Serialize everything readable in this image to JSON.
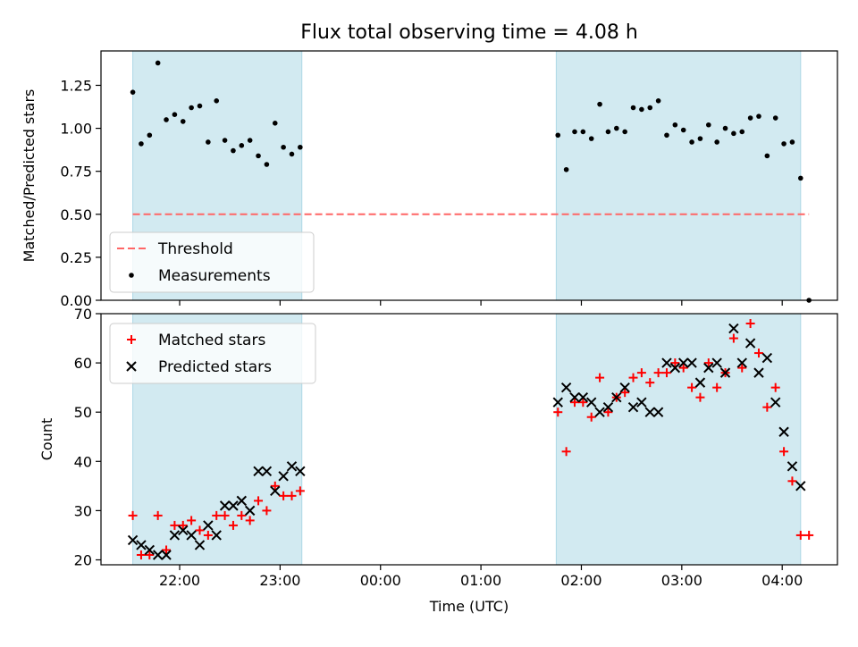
{
  "title": "Flux total observing time = 4.08 h",
  "colors": {
    "shade": "#add8e6",
    "threshold": "#ff6666",
    "measurement": "#000000",
    "matched": "#ff0000",
    "predicted": "#000000"
  },
  "chart_data": [
    {
      "type": "scatter",
      "name": "ratio-panel",
      "ylabel": "Matched/Predicted stars",
      "xlabel": "",
      "ylim": [
        0,
        1.45
      ],
      "yticks": [
        "0.00",
        "0.25",
        "0.50",
        "0.75",
        "1.00",
        "1.25"
      ],
      "ytick_values": [
        0,
        0.25,
        0.5,
        0.75,
        1.0,
        1.25
      ],
      "x_tick_labels_visible": false,
      "shaded_intervals": [
        [
          "21:32",
          "23:13"
        ],
        [
          "01:45",
          "04:11"
        ]
      ],
      "threshold": {
        "label": "Threshold",
        "value": 0.5,
        "x_range": [
          "21:32",
          "04:16"
        ],
        "style": "dashed"
      },
      "legend": {
        "placement": "lower-left",
        "entries": [
          "Threshold",
          "Measurements"
        ]
      },
      "series": [
        {
          "name": "Measurements",
          "marker": "dot",
          "points": [
            [
              "21:32",
              1.21
            ],
            [
              "21:37",
              0.91
            ],
            [
              "21:42",
              0.96
            ],
            [
              "21:47",
              1.38
            ],
            [
              "21:52",
              1.05
            ],
            [
              "21:57",
              1.08
            ],
            [
              "22:02",
              1.04
            ],
            [
              "22:07",
              1.12
            ],
            [
              "22:12",
              1.13
            ],
            [
              "22:17",
              0.92
            ],
            [
              "22:22",
              1.16
            ],
            [
              "22:27",
              0.93
            ],
            [
              "22:32",
              0.87
            ],
            [
              "22:37",
              0.9
            ],
            [
              "22:42",
              0.93
            ],
            [
              "22:47",
              0.84
            ],
            [
              "22:52",
              0.79
            ],
            [
              "22:57",
              1.03
            ],
            [
              "23:02",
              0.89
            ],
            [
              "23:07",
              0.85
            ],
            [
              "23:12",
              0.89
            ],
            [
              "01:46",
              0.96
            ],
            [
              "01:51",
              0.76
            ],
            [
              "01:56",
              0.98
            ],
            [
              "02:01",
              0.98
            ],
            [
              "02:06",
              0.94
            ],
            [
              "02:11",
              1.14
            ],
            [
              "02:16",
              0.98
            ],
            [
              "02:21",
              1.0
            ],
            [
              "02:26",
              0.98
            ],
            [
              "02:31",
              1.12
            ],
            [
              "02:36",
              1.11
            ],
            [
              "02:41",
              1.12
            ],
            [
              "02:46",
              1.16
            ],
            [
              "02:51",
              0.96
            ],
            [
              "02:56",
              1.02
            ],
            [
              "03:01",
              0.99
            ],
            [
              "03:06",
              0.92
            ],
            [
              "03:11",
              0.94
            ],
            [
              "03:16",
              1.02
            ],
            [
              "03:21",
              0.92
            ],
            [
              "03:26",
              1.0
            ],
            [
              "03:31",
              0.97
            ],
            [
              "03:36",
              0.98
            ],
            [
              "03:41",
              1.06
            ],
            [
              "03:46",
              1.07
            ],
            [
              "03:51",
              0.84
            ],
            [
              "03:56",
              1.06
            ],
            [
              "04:01",
              0.91
            ],
            [
              "04:06",
              0.92
            ],
            [
              "04:11",
              0.71
            ],
            [
              "04:16",
              0.0
            ]
          ]
        }
      ]
    },
    {
      "type": "scatter",
      "name": "count-panel",
      "ylabel": "Count",
      "xlabel": "Time (UTC)",
      "ylim": [
        19,
        70
      ],
      "yticks": [
        "20",
        "30",
        "40",
        "50",
        "60",
        "70"
      ],
      "ytick_values": [
        20,
        30,
        40,
        50,
        60,
        70
      ],
      "xticks": [
        "22:00",
        "23:00",
        "00:00",
        "01:00",
        "02:00",
        "03:00",
        "04:00"
      ],
      "shaded_intervals": [
        [
          "21:32",
          "23:13"
        ],
        [
          "01:45",
          "04:11"
        ]
      ],
      "legend": {
        "placement": "upper-left",
        "entries": [
          "Matched stars",
          "Predicted stars"
        ]
      },
      "series": [
        {
          "name": "Matched stars",
          "marker": "plus",
          "points": [
            [
              "21:32",
              29
            ],
            [
              "21:37",
              21
            ],
            [
              "21:42",
              21
            ],
            [
              "21:47",
              29
            ],
            [
              "21:52",
              22
            ],
            [
              "21:57",
              27
            ],
            [
              "22:02",
              27
            ],
            [
              "22:07",
              28
            ],
            [
              "22:12",
              26
            ],
            [
              "22:17",
              25
            ],
            [
              "22:22",
              29
            ],
            [
              "22:27",
              29
            ],
            [
              "22:32",
              27
            ],
            [
              "22:37",
              29
            ],
            [
              "22:42",
              28
            ],
            [
              "22:47",
              32
            ],
            [
              "22:52",
              30
            ],
            [
              "22:57",
              35
            ],
            [
              "23:02",
              33
            ],
            [
              "23:07",
              33
            ],
            [
              "23:12",
              34
            ],
            [
              "01:46",
              50
            ],
            [
              "01:51",
              42
            ],
            [
              "01:56",
              52
            ],
            [
              "02:01",
              52
            ],
            [
              "02:06",
              49
            ],
            [
              "02:11",
              57
            ],
            [
              "02:16",
              50
            ],
            [
              "02:21",
              53
            ],
            [
              "02:26",
              54
            ],
            [
              "02:31",
              57
            ],
            [
              "02:36",
              58
            ],
            [
              "02:41",
              56
            ],
            [
              "02:46",
              58
            ],
            [
              "02:51",
              58
            ],
            [
              "02:56",
              60
            ],
            [
              "03:01",
              59
            ],
            [
              "03:06",
              55
            ],
            [
              "03:11",
              53
            ],
            [
              "03:16",
              60
            ],
            [
              "03:21",
              55
            ],
            [
              "03:26",
              58
            ],
            [
              "03:31",
              65
            ],
            [
              "03:36",
              59
            ],
            [
              "03:41",
              68
            ],
            [
              "03:46",
              62
            ],
            [
              "03:51",
              51
            ],
            [
              "03:56",
              55
            ],
            [
              "04:01",
              42
            ],
            [
              "04:06",
              36
            ],
            [
              "04:11",
              25
            ],
            [
              "04:16",
              25
            ]
          ]
        },
        {
          "name": "Predicted stars",
          "marker": "x",
          "points": [
            [
              "21:32",
              24
            ],
            [
              "21:37",
              23
            ],
            [
              "21:42",
              22
            ],
            [
              "21:47",
              21
            ],
            [
              "21:52",
              21
            ],
            [
              "21:57",
              25
            ],
            [
              "22:02",
              26
            ],
            [
              "22:07",
              25
            ],
            [
              "22:12",
              23
            ],
            [
              "22:17",
              27
            ],
            [
              "22:22",
              25
            ],
            [
              "22:27",
              31
            ],
            [
              "22:32",
              31
            ],
            [
              "22:37",
              32
            ],
            [
              "22:42",
              30
            ],
            [
              "22:47",
              38
            ],
            [
              "22:52",
              38
            ],
            [
              "22:57",
              34
            ],
            [
              "23:02",
              37
            ],
            [
              "23:07",
              39
            ],
            [
              "23:12",
              38
            ],
            [
              "01:46",
              52
            ],
            [
              "01:51",
              55
            ],
            [
              "01:56",
              53
            ],
            [
              "02:01",
              53
            ],
            [
              "02:06",
              52
            ],
            [
              "02:11",
              50
            ],
            [
              "02:16",
              51
            ],
            [
              "02:21",
              53
            ],
            [
              "02:26",
              55
            ],
            [
              "02:31",
              51
            ],
            [
              "02:36",
              52
            ],
            [
              "02:41",
              50
            ],
            [
              "02:46",
              50
            ],
            [
              "02:51",
              60
            ],
            [
              "02:56",
              59
            ],
            [
              "03:01",
              60
            ],
            [
              "03:06",
              60
            ],
            [
              "03:11",
              56
            ],
            [
              "03:16",
              59
            ],
            [
              "03:21",
              60
            ],
            [
              "03:26",
              58
            ],
            [
              "03:31",
              67
            ],
            [
              "03:36",
              60
            ],
            [
              "03:41",
              64
            ],
            [
              "03:46",
              58
            ],
            [
              "03:51",
              61
            ],
            [
              "03:56",
              52
            ],
            [
              "04:01",
              46
            ],
            [
              "04:06",
              39
            ],
            [
              "04:11",
              35
            ]
          ]
        }
      ]
    }
  ]
}
